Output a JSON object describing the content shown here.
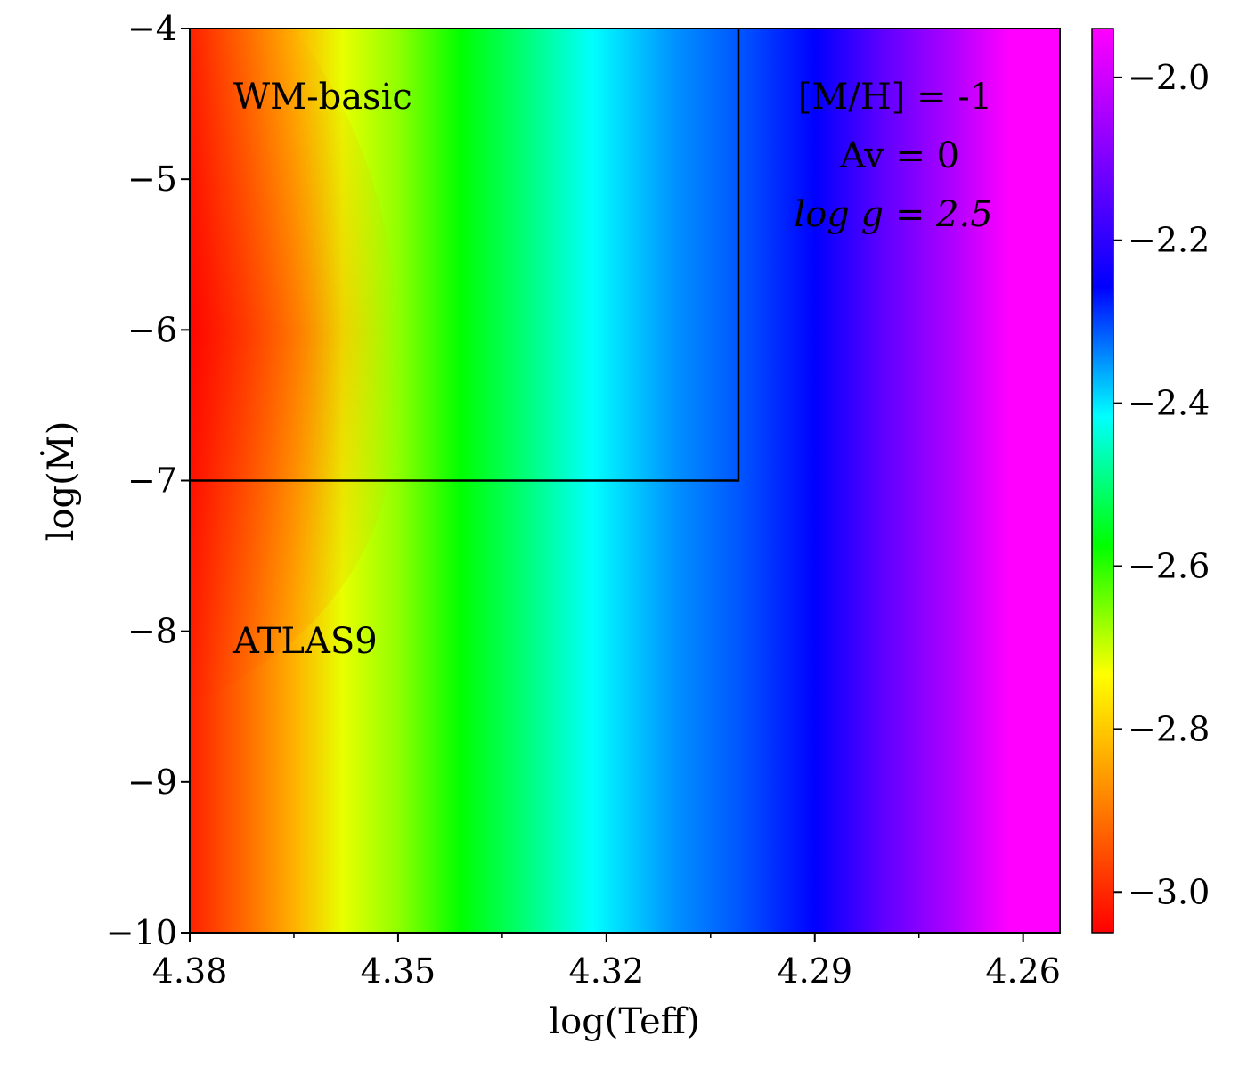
{
  "chart_data": {
    "type": "heatmap",
    "xlabel": "log(Teff)",
    "ylabel": "log(Ṁ)",
    "xlim": [
      4.38,
      4.2547
    ],
    "ylim": [
      -10,
      -4
    ],
    "x_ticks": [
      4.38,
      4.35,
      4.32,
      4.29,
      4.26
    ],
    "x_tick_labels": [
      "4.38",
      "4.35",
      "4.32",
      "4.29",
      "4.26"
    ],
    "x_minor_ticks": [
      4.365,
      4.335,
      4.305,
      4.275
    ],
    "y_ticks": [
      -10,
      -9,
      -8,
      -7,
      -6,
      -5,
      -4
    ],
    "y_tick_labels": [
      "−10",
      "−9",
      "−8",
      "−7",
      "−6",
      "−5",
      "−4"
    ],
    "colorbar": {
      "range": [
        -3.05,
        -1.94
      ],
      "ticks": [
        -3.0,
        -2.8,
        -2.6,
        -2.4,
        -2.2,
        -2.0
      ],
      "tick_labels": [
        "−3.0",
        "−2.8",
        "−2.6",
        "−2.4",
        "−2.2",
        "−2.0"
      ],
      "colormap": [
        "#ff0000",
        "#ff8000",
        "#ffff00",
        "#00ff00",
        "#00ffff",
        "#0000ff",
        "#8000ff",
        "#ff00ff"
      ]
    },
    "regions": [
      {
        "name": "WM-basic",
        "x_range": [
          4.38,
          4.301
        ],
        "y_range": [
          -7,
          -4
        ]
      },
      {
        "name": "ATLAS9",
        "x_range": [
          4.38,
          4.2547
        ],
        "y_range": [
          -10,
          -7
        ]
      }
    ],
    "annotations": [
      "WM-basic",
      "ATLAS9",
      "[M/H]  =  -1",
      "Av  =  0",
      "log g = 2.5"
    ],
    "grid": false
  },
  "labels": {
    "region_top": "WM-basic",
    "region_bottom": "ATLAS9",
    "metallicity": "[M/H]  =  -1",
    "extinction": "Av  =  0",
    "gravity": "log g = 2.5"
  }
}
